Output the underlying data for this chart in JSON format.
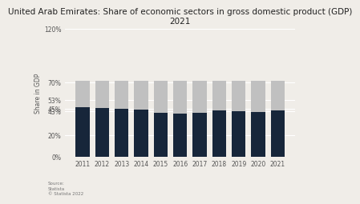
{
  "title": "United Arab Emirates: Share of economic sectors in gross domestic product (GDP)\n2021",
  "ylabel": "Share in GDP",
  "categories": [
    "2011",
    "2012",
    "2013",
    "2014",
    "2015",
    "2016",
    "2017",
    "2018",
    "2019",
    "2020",
    "2021"
  ],
  "dark_values": [
    0.465,
    0.458,
    0.448,
    0.44,
    0.415,
    0.405,
    0.412,
    0.432,
    0.428,
    0.42,
    0.435
  ],
  "gray_values": [
    0.245,
    0.252,
    0.262,
    0.27,
    0.295,
    0.305,
    0.298,
    0.278,
    0.282,
    0.29,
    0.275
  ],
  "dark_color": "#17263a",
  "gray_color": "#c0c0c0",
  "bg_color": "#f0ede8",
  "title_fontsize": 7.5,
  "ylabel_fontsize": 5.5,
  "tick_fontsize": 5.5,
  "ylim": [
    0,
    1.2
  ],
  "yticks": [
    0,
    0.2,
    0.43,
    0.45,
    0.53,
    0.7,
    1.2
  ],
  "ytick_labels": [
    "0%",
    "20%",
    "43%",
    "45%",
    "53%",
    "70%",
    "120%"
  ],
  "source_text": "Source:\nStatista\n© Statista 2022"
}
